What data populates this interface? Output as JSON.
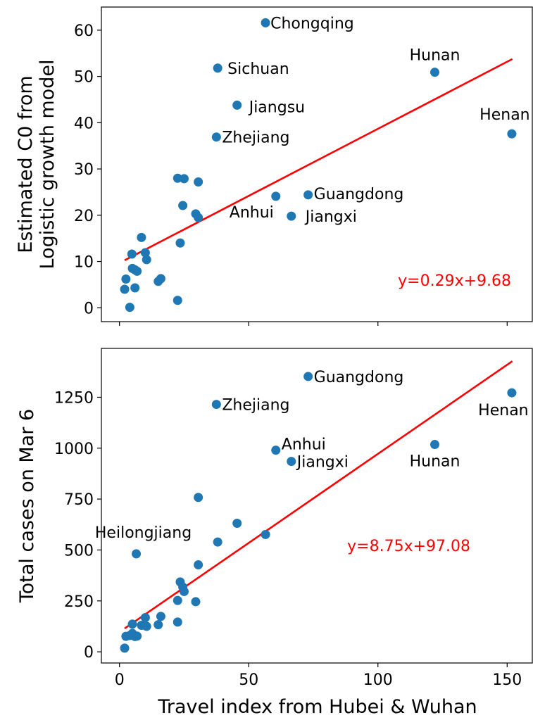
{
  "figure": {
    "xlabel": "Travel index from Hubei & Wuhan",
    "marker_color": "#1f77b4",
    "fit_color": "#ff0000"
  },
  "chart_data": [
    {
      "type": "scatter",
      "ylabel_lines": [
        "Estimated C0 from",
        "Logistic growth model"
      ],
      "xlim": [
        -7,
        160
      ],
      "ylim": [
        -3,
        65
      ],
      "x_ticks": [
        0,
        50,
        100,
        150
      ],
      "x_tick_labels": [
        "",
        "",
        "",
        ""
      ],
      "y_ticks": [
        0,
        10,
        20,
        30,
        40,
        50,
        60
      ],
      "y_tick_labels": [
        "0",
        "10",
        "20",
        "30",
        "40",
        "50",
        "60"
      ],
      "fit": {
        "slope": 0.29,
        "intercept": 9.68,
        "x_range": [
          2,
          152
        ],
        "label": "y=0.29x+9.68"
      },
      "points": [
        {
          "x": 56.5,
          "y": 61.6,
          "label": "Chongqing"
        },
        {
          "x": 38.0,
          "y": 51.8,
          "label": "Sichuan"
        },
        {
          "x": 45.5,
          "y": 43.8,
          "label": "Jiangsu"
        },
        {
          "x": 37.5,
          "y": 36.9,
          "label": "Zhejiang"
        },
        {
          "x": 122.0,
          "y": 50.9,
          "label": "Hunan"
        },
        {
          "x": 151.8,
          "y": 37.6,
          "label": "Henan"
        },
        {
          "x": 73.0,
          "y": 24.4,
          "label": "Guangdong"
        },
        {
          "x": 60.5,
          "y": 24.1,
          "label": "Anhui"
        },
        {
          "x": 66.5,
          "y": 19.8,
          "label": "Jiangxi"
        },
        {
          "x": 22.5,
          "y": 28.0
        },
        {
          "x": 25.0,
          "y": 27.9
        },
        {
          "x": 30.5,
          "y": 27.2
        },
        {
          "x": 24.5,
          "y": 22.1
        },
        {
          "x": 29.5,
          "y": 20.3
        },
        {
          "x": 30.5,
          "y": 19.5
        },
        {
          "x": 23.5,
          "y": 14.0
        },
        {
          "x": 22.5,
          "y": 1.6
        },
        {
          "x": 8.5,
          "y": 15.2
        },
        {
          "x": 10.0,
          "y": 11.9
        },
        {
          "x": 10.5,
          "y": 10.4
        },
        {
          "x": 4.8,
          "y": 11.6
        },
        {
          "x": 5.0,
          "y": 8.5
        },
        {
          "x": 6.0,
          "y": 8.2
        },
        {
          "x": 6.8,
          "y": 7.9
        },
        {
          "x": 16.0,
          "y": 6.3
        },
        {
          "x": 15.0,
          "y": 5.7
        },
        {
          "x": 2.5,
          "y": 6.2
        },
        {
          "x": 2.0,
          "y": 4.0
        },
        {
          "x": 6.0,
          "y": 4.3
        },
        {
          "x": 4.0,
          "y": 0.1
        }
      ]
    },
    {
      "type": "scatter",
      "ylabel_lines": [
        "Total cases on Mar 6"
      ],
      "xlim": [
        -7,
        160
      ],
      "ylim": [
        -55,
        1490
      ],
      "x_ticks": [
        0,
        50,
        100,
        150
      ],
      "x_tick_labels": [
        "0",
        "50",
        "100",
        "150"
      ],
      "y_ticks": [
        0,
        250,
        500,
        750,
        1000,
        1250
      ],
      "y_tick_labels": [
        "0",
        "250",
        "500",
        "750",
        "1000",
        "1250"
      ],
      "fit": {
        "slope": 8.75,
        "intercept": 97.08,
        "x_range": [
          2,
          152
        ],
        "label": "y=8.75x+97.08"
      },
      "points": [
        {
          "x": 73.0,
          "y": 1352,
          "label": "Guangdong"
        },
        {
          "x": 37.5,
          "y": 1215,
          "label": "Zhejiang"
        },
        {
          "x": 151.8,
          "y": 1272,
          "label": "Henan"
        },
        {
          "x": 122.0,
          "y": 1018,
          "label": "Hunan"
        },
        {
          "x": 60.5,
          "y": 990,
          "label": "Anhui"
        },
        {
          "x": 66.5,
          "y": 935,
          "label": "Jiangxi"
        },
        {
          "x": 6.5,
          "y": 481,
          "label": "Heilongjiang"
        },
        {
          "x": 30.5,
          "y": 758
        },
        {
          "x": 45.5,
          "y": 631
        },
        {
          "x": 56.5,
          "y": 576
        },
        {
          "x": 38.0,
          "y": 539
        },
        {
          "x": 30.5,
          "y": 427
        },
        {
          "x": 23.5,
          "y": 343
        },
        {
          "x": 24.5,
          "y": 318
        },
        {
          "x": 25.0,
          "y": 296
        },
        {
          "x": 22.5,
          "y": 252
        },
        {
          "x": 29.5,
          "y": 246
        },
        {
          "x": 22.5,
          "y": 146
        },
        {
          "x": 16.0,
          "y": 174
        },
        {
          "x": 15.0,
          "y": 133
        },
        {
          "x": 10.0,
          "y": 168
        },
        {
          "x": 8.5,
          "y": 130
        },
        {
          "x": 10.5,
          "y": 125
        },
        {
          "x": 5.0,
          "y": 136
        },
        {
          "x": 2.5,
          "y": 76
        },
        {
          "x": 4.0,
          "y": 80
        },
        {
          "x": 5.0,
          "y": 90
        },
        {
          "x": 6.0,
          "y": 75
        },
        {
          "x": 6.8,
          "y": 77
        },
        {
          "x": 2.0,
          "y": 18
        }
      ]
    }
  ]
}
